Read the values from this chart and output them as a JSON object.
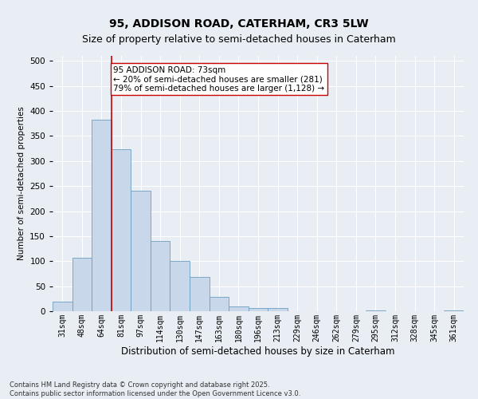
{
  "title1": "95, ADDISON ROAD, CATERHAM, CR3 5LW",
  "title2": "Size of property relative to semi-detached houses in Caterham",
  "xlabel": "Distribution of semi-detached houses by size in Caterham",
  "ylabel": "Number of semi-detached properties",
  "categories": [
    "31sqm",
    "48sqm",
    "64sqm",
    "81sqm",
    "97sqm",
    "114sqm",
    "130sqm",
    "147sqm",
    "163sqm",
    "180sqm",
    "196sqm",
    "213sqm",
    "229sqm",
    "246sqm",
    "262sqm",
    "279sqm",
    "295sqm",
    "312sqm",
    "328sqm",
    "345sqm",
    "361sqm"
  ],
  "values": [
    19,
    107,
    383,
    323,
    241,
    141,
    101,
    68,
    29,
    10,
    7,
    6,
    0,
    0,
    0,
    0,
    2,
    0,
    0,
    0,
    2
  ],
  "bar_color": "#c8d8ea",
  "bar_edge_color": "#6a9fc0",
  "vline_x_index": 2.5,
  "vline_color": "#cc0000",
  "annotation_text": "95 ADDISON ROAD: 73sqm\n← 20% of semi-detached houses are smaller (281)\n79% of semi-detached houses are larger (1,128) →",
  "annotation_box_color": "#ffffff",
  "annotation_box_edge": "#cc0000",
  "footer": "Contains HM Land Registry data © Crown copyright and database right 2025.\nContains public sector information licensed under the Open Government Licence v3.0.",
  "ylim": [
    0,
    510
  ],
  "yticks": [
    0,
    50,
    100,
    150,
    200,
    250,
    300,
    350,
    400,
    450,
    500
  ],
  "background_color": "#e8eef4",
  "grid_color": "#ffffff",
  "title1_fontsize": 10,
  "title2_fontsize": 9,
  "xlabel_fontsize": 8.5,
  "ylabel_fontsize": 7.5,
  "tick_fontsize": 7,
  "footer_fontsize": 6,
  "annotation_fontsize": 7.5
}
